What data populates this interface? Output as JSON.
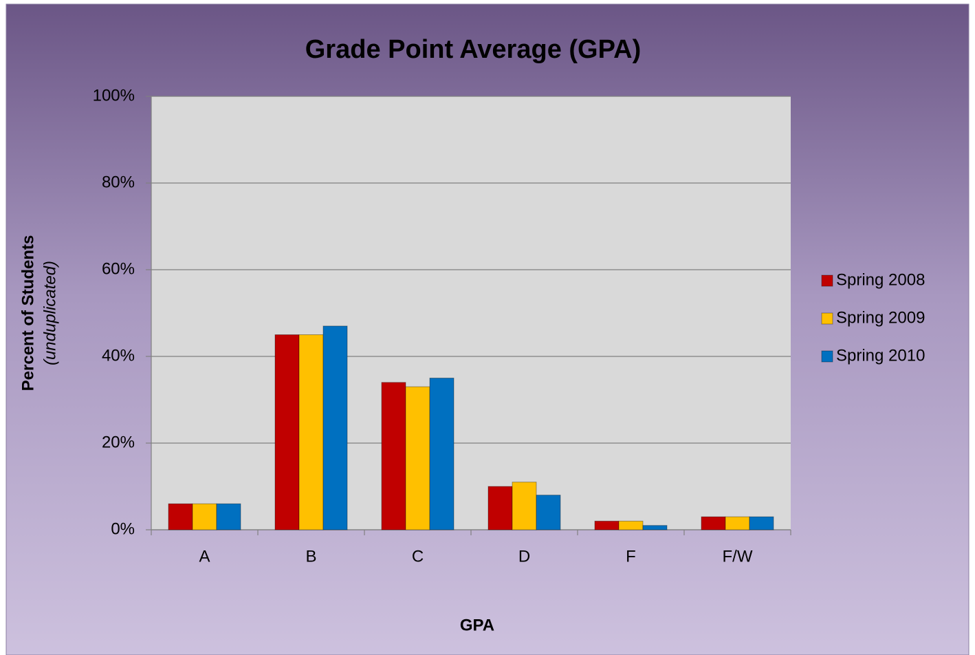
{
  "chart_data": {
    "type": "bar",
    "title": "Grade Point Average (GPA)",
    "x_label": "GPA",
    "y_label": "Percent of Students",
    "y_label_note": "(unduplicated)",
    "categories": [
      "A",
      "B",
      "C",
      "D",
      "F",
      "F/W"
    ],
    "series": [
      {
        "name": "Spring 2008",
        "color": "#c00000",
        "values": [
          6,
          45,
          34,
          10,
          2,
          3
        ]
      },
      {
        "name": "Spring 2009",
        "color": "#ffc000",
        "values": [
          6,
          45,
          33,
          11,
          2,
          3
        ]
      },
      {
        "name": "Spring 2010",
        "color": "#0070c0",
        "values": [
          6,
          47,
          35,
          8,
          1,
          3
        ]
      }
    ],
    "ylim": [
      0,
      100
    ],
    "yticks": [
      {
        "value": 0,
        "label": "0%"
      },
      {
        "value": 20,
        "label": "20%"
      },
      {
        "value": 40,
        "label": "40%"
      },
      {
        "value": 60,
        "label": "60%"
      },
      {
        "value": 80,
        "label": "80%"
      },
      {
        "value": 100,
        "label": "100%"
      }
    ],
    "grid": true,
    "legend": "right"
  }
}
